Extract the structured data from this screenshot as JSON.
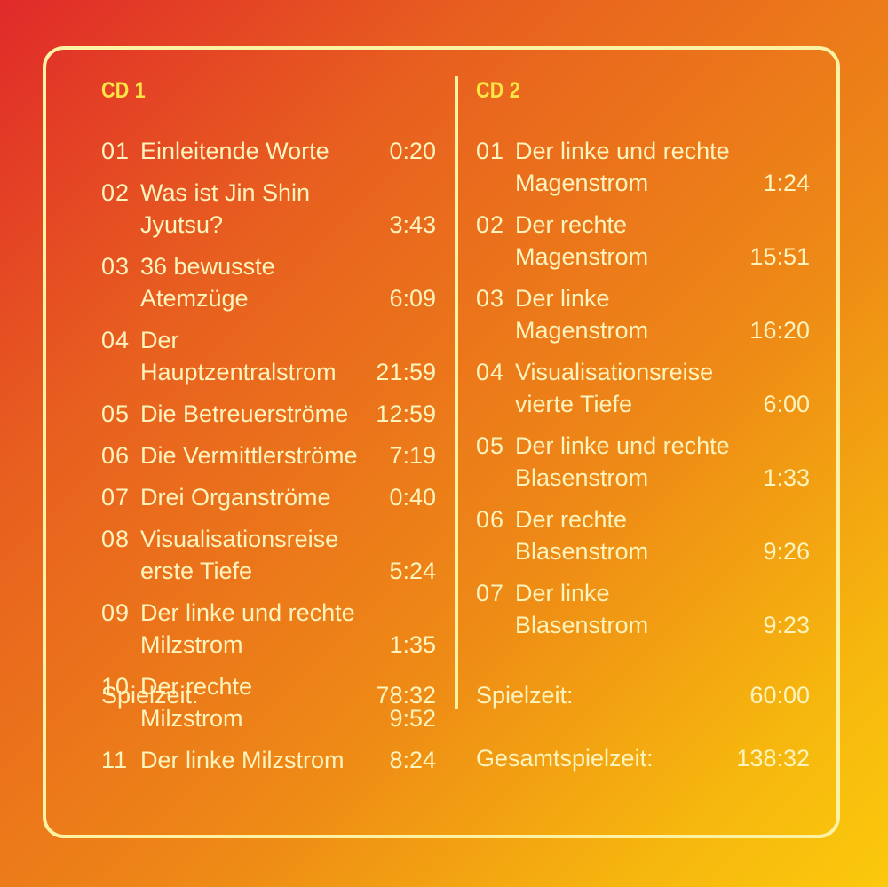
{
  "cd1": {
    "title": "CD 1",
    "tracks": [
      {
        "num": "01",
        "title": "Einleitende Worte",
        "time": "0:20"
      },
      {
        "num": "02",
        "title": "Was ist Jin Shin Jyutsu?",
        "time": "3:43"
      },
      {
        "num": "03",
        "title": "36 bewusste Atemzüge",
        "time": "6:09"
      },
      {
        "num": "04",
        "title": "Der Hauptzentralstrom",
        "time": "21:59"
      },
      {
        "num": "05",
        "title": "Die Betreuerströme",
        "time": "12:59"
      },
      {
        "num": "06",
        "title": "Die Vermittlerströme",
        "time": "7:19"
      },
      {
        "num": "07",
        "title": "Drei Organströme",
        "time": "0:40"
      },
      {
        "num": "08",
        "title": "Visualisationsreise\nerste Tiefe",
        "time": "5:24"
      },
      {
        "num": "09",
        "title": "Der linke und rechte\nMilzstrom",
        "time": "1:35"
      },
      {
        "num": "10",
        "title": "Der rechte Milzstrom",
        "time": "9:52"
      },
      {
        "num": "11",
        "title": "Der linke Milzstrom",
        "time": "8:24"
      }
    ],
    "playtime_label": "Spielzeit:",
    "playtime_value": "78:32"
  },
  "cd2": {
    "title": "CD 2",
    "tracks": [
      {
        "num": "01",
        "title": "Der linke und rechte\nMagenstrom",
        "time": "1:24"
      },
      {
        "num": "02",
        "title": "Der rechte Magenstrom",
        "time": "15:51"
      },
      {
        "num": "03",
        "title": "Der linke Magenstrom",
        "time": "16:20"
      },
      {
        "num": "04",
        "title": "Visualisationsreise\nvierte Tiefe",
        "time": "6:00"
      },
      {
        "num": "05",
        "title": "Der linke und rechte\nBlasenstrom",
        "time": "1:33"
      },
      {
        "num": "06",
        "title": "Der rechte Blasenstrom",
        "time": "9:26"
      },
      {
        "num": "07",
        "title": "Der linke Blasenstrom",
        "time": "9:23"
      }
    ],
    "playtime_label": "Spielzeit:",
    "playtime_value": "60:00",
    "total_label": "Gesamtspielzeit:",
    "total_value": "138:32"
  },
  "colors": {
    "text": "#fdf4bd",
    "heading": "#fbe445",
    "frame": "#fcf2a4",
    "gradient_start": "#e02a2a",
    "gradient_end": "#fbc90c"
  }
}
